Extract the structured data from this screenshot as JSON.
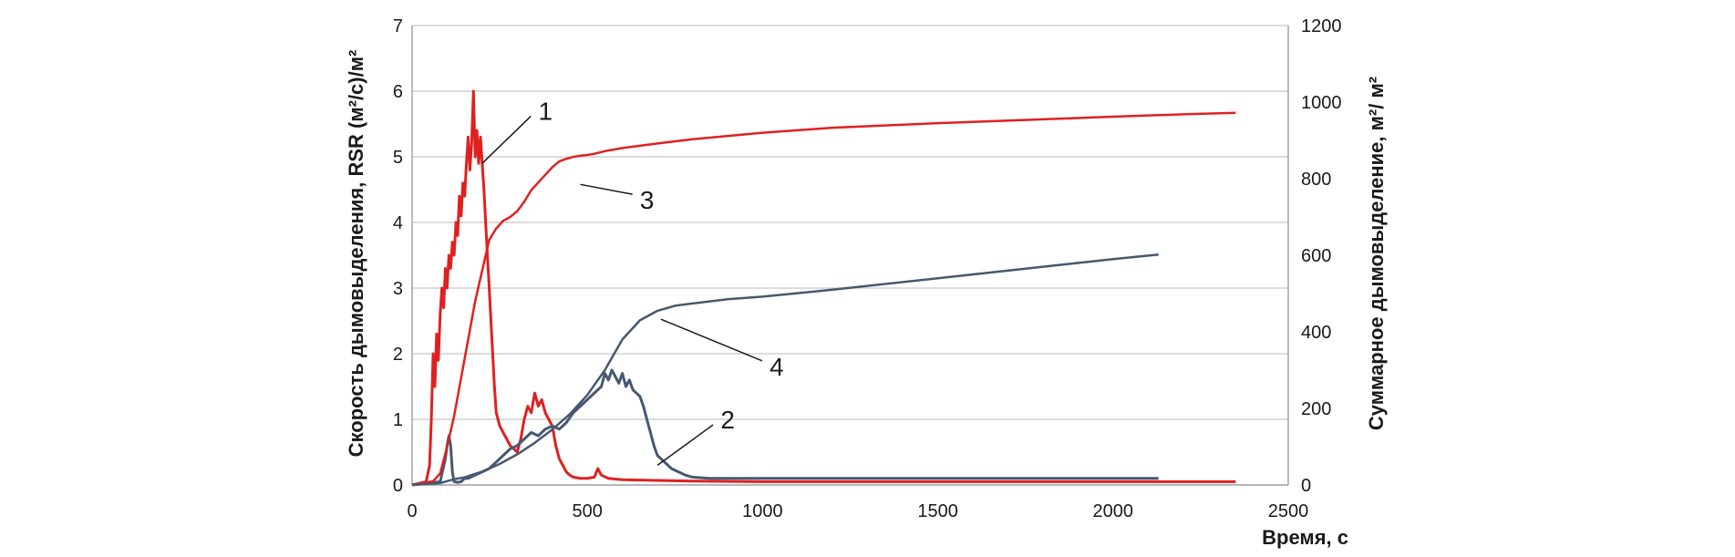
{
  "chart_data": {
    "type": "line",
    "title": "",
    "xlabel": "Время, с",
    "ylabel_left": "Скорость дымовыделения, RSR (м²/с)/м²",
    "ylabel_right": "Суммарное дымовыделение, м²/ м²",
    "xlim": [
      0,
      2500
    ],
    "ylim_left": [
      0,
      7
    ],
    "ylim_right": [
      0,
      1200
    ],
    "xticks": [
      "0",
      "500",
      "1000",
      "1500",
      "2000",
      "2500"
    ],
    "yticks_left": [
      "0",
      "1",
      "2",
      "3",
      "4",
      "5",
      "6",
      "7"
    ],
    "yticks_right": [
      "0",
      "200",
      "400",
      "600",
      "800",
      "1000",
      "1200"
    ],
    "grid": "horizontal",
    "legend": "none",
    "colors": {
      "red": "#e02020",
      "blue": "#465871"
    },
    "series": [
      {
        "label": "1",
        "axis": "left",
        "color": "#e02020",
        "x": [
          0,
          40,
          50,
          55,
          60,
          65,
          70,
          75,
          80,
          85,
          90,
          95,
          100,
          105,
          110,
          115,
          120,
          125,
          130,
          135,
          140,
          145,
          150,
          155,
          160,
          165,
          170,
          175,
          180,
          185,
          190,
          195,
          200,
          205,
          210,
          215,
          220,
          225,
          230,
          235,
          240,
          250,
          260,
          270,
          280,
          290,
          300,
          310,
          320,
          330,
          340,
          350,
          360,
          370,
          380,
          390,
          400,
          410,
          420,
          430,
          440,
          450,
          460,
          480,
          500,
          520,
          530,
          540,
          560,
          600,
          700,
          800,
          1000,
          1500,
          2000,
          2350
        ],
        "y": [
          0,
          0.05,
          0.3,
          1.0,
          2.0,
          1.5,
          2.3,
          1.9,
          2.6,
          3.0,
          2.7,
          3.3,
          3.0,
          3.5,
          3.3,
          3.7,
          3.5,
          4.0,
          3.8,
          4.4,
          4.1,
          4.6,
          4.4,
          4.9,
          5.3,
          4.8,
          5.2,
          6.0,
          5.0,
          5.4,
          4.9,
          5.3,
          4.9,
          4.5,
          4.0,
          3.5,
          3.0,
          2.5,
          2.0,
          1.5,
          1.1,
          0.9,
          0.8,
          0.7,
          0.6,
          0.55,
          0.5,
          0.7,
          1.0,
          1.2,
          1.1,
          1.4,
          1.2,
          1.3,
          1.1,
          1.0,
          0.9,
          0.6,
          0.4,
          0.3,
          0.2,
          0.15,
          0.12,
          0.1,
          0.1,
          0.12,
          0.25,
          0.15,
          0.1,
          0.08,
          0.07,
          0.06,
          0.05,
          0.05,
          0.05,
          0.05
        ]
      },
      {
        "label": "2",
        "axis": "left",
        "color": "#465871",
        "x": [
          0,
          80,
          95,
          100,
          105,
          110,
          115,
          120,
          130,
          140,
          150,
          160,
          180,
          200,
          220,
          240,
          260,
          280,
          300,
          320,
          340,
          360,
          380,
          400,
          420,
          440,
          460,
          480,
          500,
          520,
          540,
          550,
          560,
          570,
          580,
          590,
          600,
          610,
          620,
          630,
          640,
          650,
          660,
          670,
          680,
          690,
          700,
          720,
          740,
          760,
          780,
          800,
          850,
          900,
          1000,
          1200,
          1500,
          1800,
          2000,
          2130
        ],
        "y": [
          0,
          0.05,
          0.4,
          0.6,
          0.75,
          0.6,
          0.2,
          0.05,
          0.04,
          0.05,
          0.1,
          0.1,
          0.15,
          0.2,
          0.25,
          0.35,
          0.45,
          0.55,
          0.6,
          0.7,
          0.8,
          0.75,
          0.85,
          0.9,
          0.85,
          0.95,
          1.1,
          1.2,
          1.3,
          1.4,
          1.5,
          1.7,
          1.6,
          1.75,
          1.65,
          1.55,
          1.7,
          1.5,
          1.6,
          1.45,
          1.4,
          1.35,
          1.2,
          1.0,
          0.8,
          0.6,
          0.45,
          0.35,
          0.25,
          0.2,
          0.15,
          0.12,
          0.1,
          0.1,
          0.1,
          0.1,
          0.1,
          0.1,
          0.1,
          0.1
        ]
      },
      {
        "label": "3",
        "axis": "right",
        "color": "#e02020",
        "x": [
          0,
          60,
          80,
          100,
          120,
          140,
          160,
          180,
          200,
          220,
          240,
          260,
          280,
          300,
          320,
          340,
          360,
          380,
          400,
          420,
          440,
          460,
          480,
          500,
          520,
          550,
          600,
          700,
          800,
          1000,
          1200,
          1500,
          1800,
          2000,
          2200,
          2350
        ],
        "y": [
          0,
          10,
          30,
          100,
          180,
          280,
          380,
          480,
          560,
          640,
          670,
          690,
          700,
          715,
          740,
          770,
          790,
          810,
          830,
          845,
          852,
          857,
          860,
          862,
          865,
          872,
          880,
          892,
          903,
          920,
          933,
          945,
          955,
          962,
          968,
          972
        ]
      },
      {
        "label": "4",
        "axis": "right",
        "color": "#465871",
        "x": [
          0,
          80,
          100,
          120,
          150,
          200,
          250,
          300,
          350,
          400,
          450,
          500,
          550,
          600,
          650,
          700,
          750,
          800,
          900,
          1000,
          1200,
          1500,
          1800,
          2000,
          2130
        ],
        "y": [
          0,
          5,
          10,
          15,
          20,
          35,
          55,
          80,
          110,
          145,
          185,
          235,
          300,
          380,
          430,
          455,
          468,
          474,
          485,
          492,
          510,
          540,
          570,
          590,
          602
        ]
      }
    ],
    "annotations": [
      {
        "text": "1",
        "x": 370,
        "y_left": 5.7,
        "leader_to": [
          200,
          4.9
        ]
      },
      {
        "text": "2",
        "x": 890,
        "y_left": 1.0,
        "leader_to": [
          700,
          0.3
        ]
      },
      {
        "text": "3",
        "x": 660,
        "y_right": 745,
        "leader_to": [
          480,
          785
        ]
      },
      {
        "text": "4",
        "x": 1030,
        "y_right": 310,
        "leader_to": [
          710,
          433
        ]
      }
    ]
  }
}
